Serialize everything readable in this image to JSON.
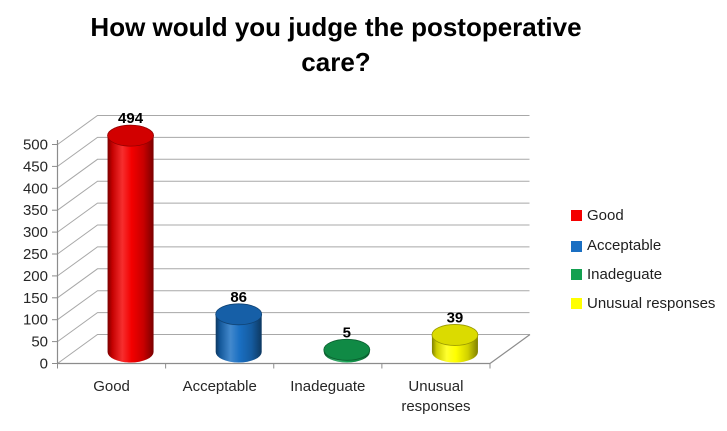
{
  "title": "How would you judge the postoperative care?",
  "chart_data": {
    "type": "bar",
    "style": "3d-cylinder",
    "title": "How would you judge the postoperative care?",
    "categories": [
      "Good",
      "Acceptable",
      "Inadeguate",
      "Unusual responses"
    ],
    "values": [
      494,
      86,
      5,
      39
    ],
    "data_labels": [
      "494",
      "86",
      "5",
      "39"
    ],
    "series_colors": [
      "#f40000",
      "#1a6fc2",
      "#13a050",
      "#ffff00"
    ],
    "xlabel": "",
    "ylabel": "",
    "ylim": [
      0,
      500
    ],
    "ytick_step": 50,
    "ytick_labels": [
      "0",
      "50",
      "100",
      "150",
      "200",
      "250",
      "300",
      "350",
      "400",
      "450",
      "500"
    ],
    "grid": true,
    "legend_position": "right",
    "legend": [
      {
        "label": "Good",
        "color": "#f40000"
      },
      {
        "label": "Acceptable",
        "color": "#1a6fc2"
      },
      {
        "label": "Inadeguate",
        "color": "#13a050"
      },
      {
        "label": "Unusual responses",
        "color": "#ffff00"
      }
    ],
    "background": "#ffffff",
    "text_color": "#262626",
    "grid_color": "#a8a8a8",
    "axis_color": "#8c8c8c"
  }
}
